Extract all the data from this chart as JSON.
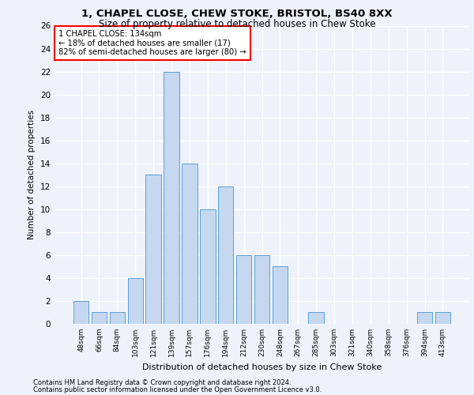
{
  "title1": "1, CHAPEL CLOSE, CHEW STOKE, BRISTOL, BS40 8XX",
  "title2": "Size of property relative to detached houses in Chew Stoke",
  "xlabel": "Distribution of detached houses by size in Chew Stoke",
  "ylabel": "Number of detached properties",
  "categories": [
    "48sqm",
    "66sqm",
    "84sqm",
    "103sqm",
    "121sqm",
    "139sqm",
    "157sqm",
    "176sqm",
    "194sqm",
    "212sqm",
    "230sqm",
    "248sqm",
    "267sqm",
    "285sqm",
    "303sqm",
    "321sqm",
    "340sqm",
    "358sqm",
    "376sqm",
    "394sqm",
    "413sqm"
  ],
  "values": [
    2,
    1,
    1,
    4,
    13,
    22,
    14,
    10,
    12,
    6,
    6,
    5,
    0,
    1,
    0,
    0,
    0,
    0,
    0,
    1,
    1
  ],
  "bar_color": "#c5d8f0",
  "bar_edge_color": "#5a9fd4",
  "background_color": "#eef3fb",
  "grid_color": "#ffffff",
  "annotation_line1": "1 CHAPEL CLOSE: 134sqm",
  "annotation_line2": "← 18% of detached houses are smaller (17)",
  "annotation_line3": "82% of semi-detached houses are larger (80) →",
  "ylim": [
    0,
    26
  ],
  "yticks": [
    0,
    2,
    4,
    6,
    8,
    10,
    12,
    14,
    16,
    18,
    20,
    22,
    24,
    26
  ],
  "footer_line1": "Contains HM Land Registry data © Crown copyright and database right 2024.",
  "footer_line2": "Contains public sector information licensed under the Open Government Licence v3.0."
}
